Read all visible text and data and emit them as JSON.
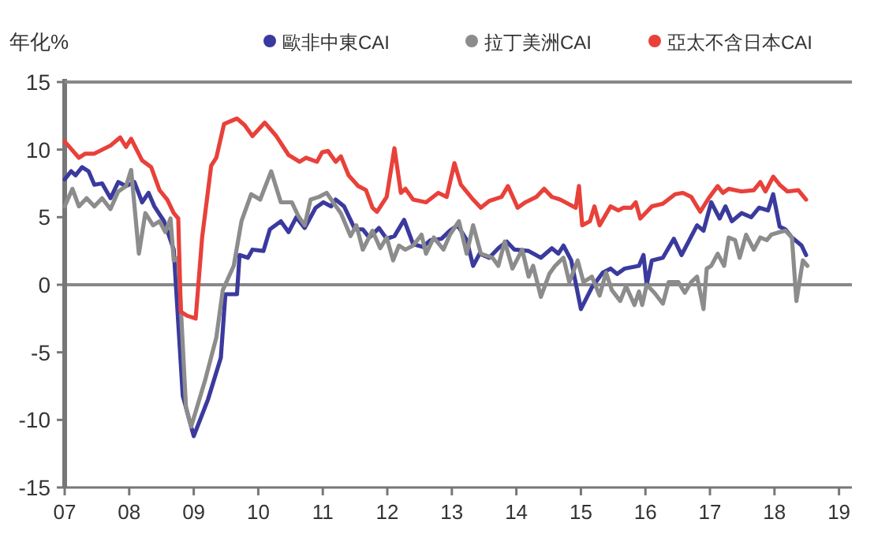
{
  "chart_data": {
    "type": "line",
    "ylabel": "年化%",
    "legend": "top",
    "grid": false,
    "marker": "none",
    "line_style": "solid",
    "xlim": [
      2007,
      2019.2
    ],
    "xticks": [
      {
        "value": 2007,
        "label": "07"
      },
      {
        "value": 2008,
        "label": "08"
      },
      {
        "value": 2009,
        "label": "09"
      },
      {
        "value": 2010,
        "label": "10"
      },
      {
        "value": 2011,
        "label": "11"
      },
      {
        "value": 2012,
        "label": "12"
      },
      {
        "value": 2013,
        "label": "13"
      },
      {
        "value": 2014,
        "label": "14"
      },
      {
        "value": 2015,
        "label": "15"
      },
      {
        "value": 2016,
        "label": "16"
      },
      {
        "value": 2017,
        "label": "17"
      },
      {
        "value": 2018,
        "label": "18"
      },
      {
        "value": 2019,
        "label": "19"
      }
    ],
    "ylim": [
      -15,
      15
    ],
    "yticks": [
      -15,
      -10,
      -5,
      0,
      5,
      10,
      15
    ],
    "ref_lines": [
      {
        "axis": "y",
        "value": 0,
        "color": "#888888"
      }
    ],
    "series": [
      {
        "name": "歐非中東CAI",
        "color": "#3a3a9e",
        "x": [
          2007.0,
          2007.1,
          2007.17,
          2007.27,
          2007.37,
          2007.46,
          2007.58,
          2007.71,
          2007.83,
          2007.95,
          2008.08,
          2008.2,
          2008.3,
          2008.39,
          2008.54,
          2008.69,
          2008.83,
          2009.0,
          2009.22,
          2009.42,
          2009.49,
          2009.67,
          2009.71,
          2009.84,
          2009.91,
          2010.08,
          2010.18,
          2010.35,
          2010.47,
          2010.59,
          2010.72,
          2010.89,
          2011.01,
          2011.13,
          2011.2,
          2011.33,
          2011.5,
          2011.62,
          2011.72,
          2011.87,
          2011.99,
          2012.11,
          2012.26,
          2012.4,
          2012.55,
          2012.67,
          2012.84,
          2012.97,
          2013.09,
          2013.23,
          2013.33,
          2013.43,
          2013.58,
          2013.72,
          2013.85,
          2013.97,
          2014.19,
          2014.38,
          2014.55,
          2014.65,
          2014.73,
          2014.85,
          2015.0,
          2015.17,
          2015.34,
          2015.46,
          2015.56,
          2015.68,
          2015.9,
          2015.97,
          2016.02,
          2016.1,
          2016.27,
          2016.44,
          2016.56,
          2016.68,
          2016.8,
          2016.9,
          2017.02,
          2017.15,
          2017.24,
          2017.34,
          2017.49,
          2017.64,
          2017.76,
          2017.9,
          2017.98,
          2018.08,
          2018.17,
          2018.27,
          2018.42,
          2018.49
        ],
        "values": [
          7.8,
          8.4,
          8.1,
          8.7,
          8.4,
          7.4,
          7.5,
          6.4,
          7.6,
          7.3,
          7.6,
          6.1,
          6.8,
          5.8,
          4.7,
          2.6,
          -8.2,
          -11.2,
          -8.5,
          -5.4,
          -0.7,
          -0.7,
          2.2,
          2.0,
          2.6,
          2.5,
          4.1,
          4.7,
          3.9,
          5.0,
          4.2,
          5.7,
          6.1,
          5.8,
          6.3,
          5.8,
          4.1,
          4.1,
          3.5,
          4.2,
          3.4,
          3.6,
          4.8,
          3.0,
          2.8,
          3.3,
          3.4,
          4.0,
          4.4,
          3.3,
          1.4,
          2.3,
          2.0,
          2.7,
          3.2,
          2.6,
          2.5,
          2.0,
          2.7,
          2.3,
          2.9,
          1.8,
          -1.8,
          -0.2,
          0.9,
          1.2,
          0.8,
          1.2,
          1.4,
          2.2,
          0.0,
          1.8,
          2.0,
          3.4,
          2.2,
          3.3,
          4.4,
          4.0,
          6.1,
          4.9,
          5.8,
          4.7,
          5.3,
          5.0,
          5.7,
          5.5,
          6.7,
          4.3,
          4.1,
          3.5,
          2.9,
          2.2
        ]
      },
      {
        "name": "拉丁美洲CAI",
        "color": "#8c8c8c",
        "x": [
          2007.0,
          2007.12,
          2007.22,
          2007.34,
          2007.46,
          2007.58,
          2007.71,
          2007.83,
          2007.95,
          2008.03,
          2008.15,
          2008.25,
          2008.37,
          2008.47,
          2008.56,
          2008.64,
          2008.69,
          2008.76,
          2008.88,
          2008.96,
          2009.18,
          2009.35,
          2009.45,
          2009.62,
          2009.74,
          2009.89,
          2010.03,
          2010.2,
          2010.35,
          2010.52,
          2010.62,
          2010.72,
          2010.81,
          2010.94,
          2011.06,
          2011.16,
          2011.28,
          2011.43,
          2011.52,
          2011.62,
          2011.77,
          2011.89,
          2011.99,
          2012.09,
          2012.18,
          2012.28,
          2012.4,
          2012.53,
          2012.6,
          2012.72,
          2012.87,
          2012.97,
          2013.11,
          2013.23,
          2013.33,
          2013.45,
          2013.63,
          2013.72,
          2013.82,
          2013.94,
          2014.09,
          2014.19,
          2014.26,
          2014.38,
          2014.51,
          2014.6,
          2014.73,
          2014.82,
          2014.95,
          2015.04,
          2015.17,
          2015.29,
          2015.39,
          2015.48,
          2015.61,
          2015.7,
          2015.83,
          2015.9,
          2015.95,
          2016.02,
          2016.14,
          2016.27,
          2016.36,
          2016.51,
          2016.61,
          2016.71,
          2016.8,
          2016.9,
          2016.95,
          2017.02,
          2017.12,
          2017.22,
          2017.29,
          2017.39,
          2017.46,
          2017.56,
          2017.68,
          2017.78,
          2017.88,
          2017.95,
          2018.08,
          2018.17,
          2018.27,
          2018.34,
          2018.44,
          2018.51
        ],
        "values": [
          5.8,
          7.1,
          5.8,
          6.4,
          5.8,
          6.4,
          5.6,
          6.9,
          7.3,
          8.5,
          2.3,
          5.3,
          4.4,
          4.7,
          3.9,
          4.9,
          1.8,
          2.0,
          -9.1,
          -10.5,
          -7.0,
          -3.9,
          -0.4,
          1.4,
          4.7,
          6.7,
          6.3,
          8.4,
          6.1,
          6.1,
          5.1,
          4.4,
          6.3,
          6.5,
          6.8,
          6.1,
          5.3,
          3.6,
          4.4,
          2.6,
          4.0,
          2.7,
          3.5,
          1.8,
          2.9,
          2.6,
          2.9,
          3.7,
          2.3,
          3.5,
          2.6,
          3.7,
          4.7,
          2.3,
          4.4,
          2.3,
          2.0,
          1.4,
          3.2,
          1.2,
          2.6,
          0.6,
          1.4,
          -0.9,
          0.8,
          1.4,
          2.0,
          0.2,
          1.8,
          0.2,
          0.6,
          -0.8,
          0.9,
          -0.4,
          -1.2,
          -0.1,
          -1.5,
          -0.5,
          -1.5,
          0.0,
          -0.6,
          -1.4,
          0.2,
          0.2,
          -0.6,
          0.2,
          0.6,
          -1.8,
          1.2,
          1.4,
          2.3,
          1.4,
          3.5,
          3.3,
          2.0,
          3.7,
          2.6,
          3.5,
          3.3,
          3.7,
          3.9,
          4.0,
          3.5,
          -1.2,
          1.8,
          1.4
        ]
      },
      {
        "name": "亞太不含日本CAI",
        "color": "#e8413a",
        "x": [
          2007.0,
          2007.22,
          2007.32,
          2007.46,
          2007.71,
          2007.86,
          2007.95,
          2008.03,
          2008.2,
          2008.34,
          2008.47,
          2008.59,
          2008.69,
          2008.76,
          2008.8,
          2008.9,
          2009.03,
          2009.13,
          2009.27,
          2009.35,
          2009.47,
          2009.67,
          2009.79,
          2009.91,
          2010.1,
          2010.28,
          2010.47,
          2010.64,
          2010.74,
          2010.91,
          2010.99,
          2011.08,
          2011.2,
          2011.28,
          2011.4,
          2011.55,
          2011.67,
          2011.77,
          2011.84,
          2011.99,
          2012.11,
          2012.21,
          2012.28,
          2012.4,
          2012.6,
          2012.79,
          2012.92,
          2013.04,
          2013.14,
          2013.33,
          2013.45,
          2013.58,
          2013.77,
          2013.87,
          2014.02,
          2014.14,
          2014.31,
          2014.43,
          2014.55,
          2014.68,
          2014.8,
          2014.92,
          2014.97,
          2015.02,
          2015.14,
          2015.21,
          2015.29,
          2015.46,
          2015.58,
          2015.66,
          2015.78,
          2015.85,
          2015.92,
          2016.02,
          2016.1,
          2016.27,
          2016.46,
          2016.58,
          2016.71,
          2016.85,
          2016.98,
          2017.12,
          2017.2,
          2017.29,
          2017.49,
          2017.68,
          2017.78,
          2017.86,
          2017.98,
          2018.08,
          2018.2,
          2018.37,
          2018.49
        ],
        "values": [
          10.6,
          9.4,
          9.7,
          9.7,
          10.3,
          10.9,
          10.2,
          10.8,
          9.2,
          8.7,
          7.0,
          6.3,
          5.3,
          4.9,
          -2.0,
          -2.3,
          -2.5,
          3.5,
          8.8,
          9.4,
          11.9,
          12.3,
          11.8,
          11.0,
          12.0,
          11.0,
          9.6,
          9.1,
          9.4,
          9.1,
          9.8,
          9.9,
          9.1,
          9.5,
          8.1,
          7.3,
          7.0,
          5.7,
          5.4,
          6.5,
          10.1,
          6.8,
          7.1,
          6.3,
          6.1,
          6.8,
          6.5,
          9.0,
          7.4,
          6.3,
          5.7,
          6.2,
          6.5,
          7.3,
          5.7,
          6.1,
          6.5,
          7.1,
          6.5,
          6.3,
          6.0,
          5.7,
          7.3,
          4.4,
          4.7,
          5.8,
          4.4,
          5.8,
          5.5,
          5.7,
          5.7,
          6.1,
          4.9,
          5.4,
          5.8,
          6.0,
          6.7,
          6.8,
          6.5,
          5.4,
          6.4,
          7.3,
          6.8,
          7.1,
          6.9,
          7.0,
          7.6,
          6.9,
          8.0,
          7.4,
          6.9,
          7.0,
          6.3
        ]
      }
    ]
  }
}
